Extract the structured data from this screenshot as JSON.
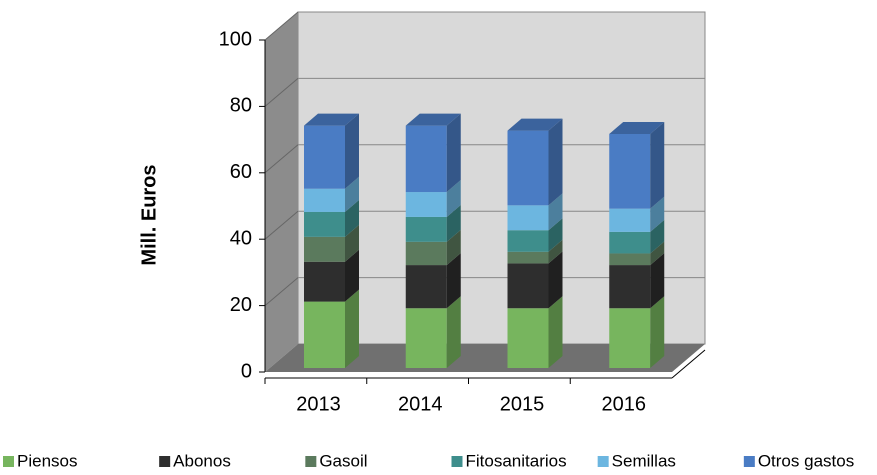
{
  "chart_data": {
    "type": "bar3d_stacked",
    "y_axis_label": "Mill.  Euros",
    "categories": [
      "2013",
      "2014",
      "2015",
      "2016"
    ],
    "series": [
      {
        "name": "Piensos",
        "color": "#77b55e",
        "values": [
          20,
          18,
          18,
          18
        ]
      },
      {
        "name": "Abonos",
        "color": "#2e2e2e",
        "values": [
          12,
          13,
          13.5,
          13
        ]
      },
      {
        "name": "Gasoil",
        "color": "#5b7a5d",
        "values": [
          7.5,
          7,
          3.5,
          3.5
        ]
      },
      {
        "name": "Fitosanitarios",
        "color": "#3e8e8c",
        "values": [
          7.5,
          7.5,
          6.5,
          6.5
        ]
      },
      {
        "name": "Semillas",
        "color": "#6cb6e0",
        "values": [
          7,
          7.5,
          7.5,
          7
        ]
      },
      {
        "name": "Otros gastos",
        "color": "#4a7cc4",
        "values": [
          19,
          20,
          22.5,
          22.5
        ]
      }
    ],
    "ylim": [
      0,
      100
    ],
    "yticks": [
      0,
      20,
      40,
      60,
      80,
      100
    ],
    "grid": true
  }
}
